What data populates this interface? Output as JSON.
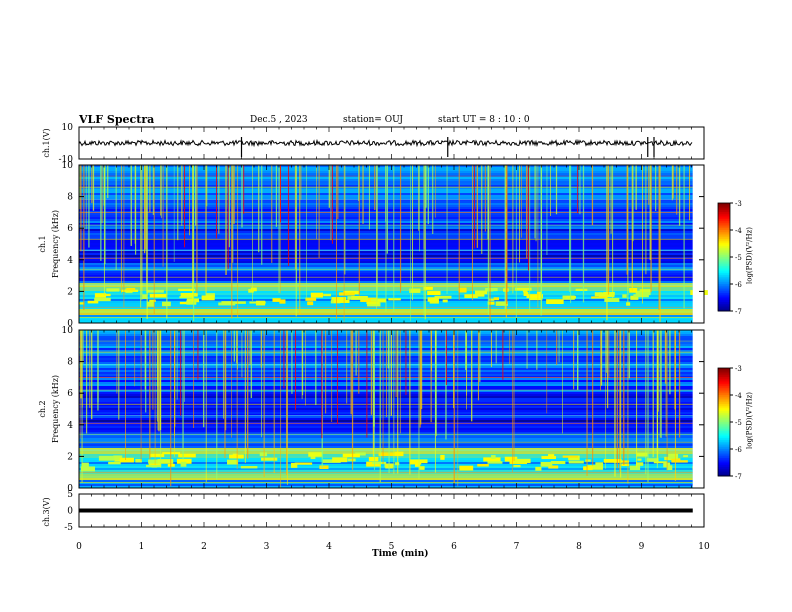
{
  "header": {
    "title": "VLF Spectra",
    "date": "Dec.5  , 2023",
    "station": "station= OUJ",
    "start_ut": "start  UT  =   8  : 10 : 0"
  },
  "colorbar": {
    "label": "log(PSD)(V²/Hz)",
    "ticks": [
      "-3",
      "-4",
      "-5",
      "-6",
      "-7"
    ]
  },
  "chart_data": [
    {
      "type": "line",
      "panel": "ch1-waveform",
      "ylabel": "ch.1(V)",
      "ylim": [
        -10,
        10
      ],
      "yticks": [
        "10",
        "-10"
      ],
      "xlim": [
        0,
        10
      ],
      "baseline": 0,
      "spikes_x_min": [
        2.6,
        5.9,
        9.1,
        9.2
      ]
    },
    {
      "type": "heatmap",
      "panel": "ch1-spectrogram",
      "ylabel_line1": "ch.1",
      "ylabel_line2": "Frequency  (kHz)",
      "ylim": [
        0,
        10
      ],
      "yticks": [
        "0",
        "2",
        "4",
        "6",
        "8",
        "10"
      ],
      "xlim": [
        0,
        10
      ],
      "zlim": [
        -7,
        -3
      ]
    },
    {
      "type": "heatmap",
      "panel": "ch2-spectrogram",
      "ylabel_line1": "ch.2",
      "ylabel_line2": "Frequency  (kHz)",
      "ylim": [
        0,
        10
      ],
      "yticks": [
        "0",
        "2",
        "4",
        "6",
        "8",
        "10"
      ],
      "xlim": [
        0,
        10
      ],
      "zlim": [
        -7,
        -3
      ]
    },
    {
      "type": "line",
      "panel": "ch3-waveform",
      "ylabel": "ch.3(V)",
      "ylim": [
        -5,
        5
      ],
      "yticks": [
        "5",
        "0",
        "-5"
      ],
      "xlim": [
        0,
        10
      ],
      "baseline": 0,
      "xlabel": "Time  (min)",
      "xticks": [
        "0",
        "1",
        "2",
        "3",
        "4",
        "5",
        "6",
        "7",
        "8",
        "9",
        "10"
      ]
    }
  ]
}
